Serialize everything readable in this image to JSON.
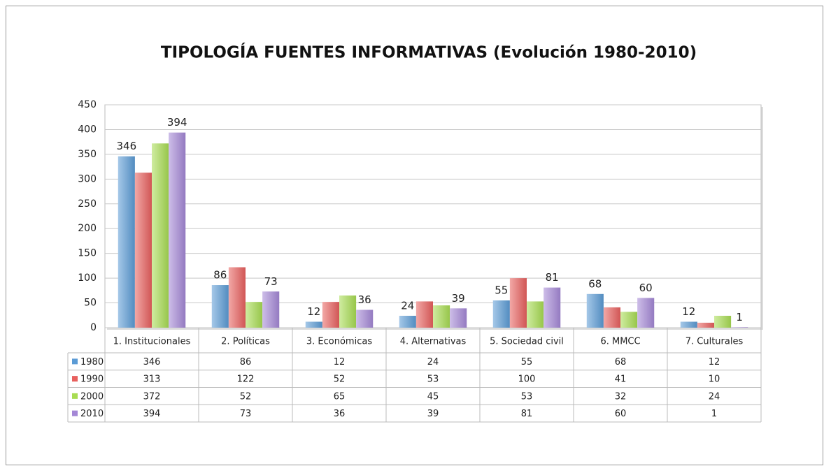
{
  "chart_data": {
    "type": "bar",
    "title": "TIPOLOGÍA FUENTES INFORMATIVAS (Evolución 1980-2010)",
    "categories": [
      "1. Institucionales",
      "2. Políticas",
      "3. Económicas",
      "4. Alternativas",
      "5. Sociedad civil",
      "6. MMCC",
      "7. Culturales"
    ],
    "series": [
      {
        "name": "1980",
        "color": "#5b9bd5",
        "labels": true,
        "values": [
          346,
          86,
          12,
          24,
          55,
          68,
          12
        ]
      },
      {
        "name": "1990",
        "color": "#e8605e",
        "labels": false,
        "values": [
          313,
          122,
          52,
          53,
          100,
          41,
          10
        ]
      },
      {
        "name": "2000",
        "color": "#a8dc52",
        "labels": false,
        "values": [
          372,
          52,
          65,
          45,
          53,
          32,
          24
        ]
      },
      {
        "name": "2010",
        "color": "#a487d6",
        "labels": true,
        "values": [
          394,
          73,
          36,
          39,
          81,
          60,
          1
        ]
      }
    ],
    "ylim": [
      0,
      450
    ],
    "yticks": [
      0,
      50,
      100,
      150,
      200,
      250,
      300,
      350,
      400,
      450
    ],
    "grid": true,
    "data_table": true
  }
}
